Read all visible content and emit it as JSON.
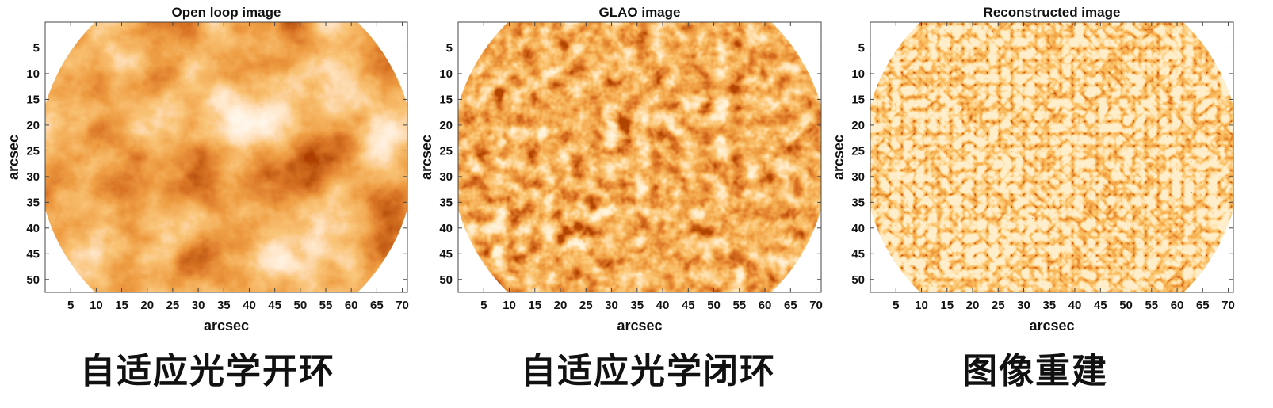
{
  "chart_data": [
    {
      "type": "heatmap",
      "title": "Open loop image",
      "xlabel": "arcsec",
      "ylabel": "arcsec",
      "xlim": [
        0,
        71
      ],
      "ylim": [
        52.5,
        0
      ],
      "xticks": [
        5,
        10,
        15,
        20,
        25,
        30,
        35,
        40,
        45,
        50,
        55,
        60,
        65,
        70
      ],
      "yticks": [
        5,
        10,
        15,
        20,
        25,
        30,
        35,
        40,
        45,
        50
      ],
      "colormap": [
        "#7a1500",
        "#c84a10",
        "#ef8a2e",
        "#ffe4c0"
      ],
      "texture": "blurred",
      "caption": "自适应光学开环"
    },
    {
      "type": "heatmap",
      "title": "GLAO image",
      "xlabel": "arcsec",
      "ylabel": "arcsec",
      "xlim": [
        0,
        71
      ],
      "ylim": [
        52.5,
        0
      ],
      "xticks": [
        5,
        10,
        15,
        20,
        25,
        30,
        35,
        40,
        45,
        50,
        55,
        60,
        65,
        70
      ],
      "yticks": [
        5,
        10,
        15,
        20,
        25,
        30,
        35,
        40,
        45,
        50
      ],
      "colormap": [
        "#7a1500",
        "#c84a10",
        "#ef8a2e",
        "#ffe4c0"
      ],
      "texture": "granules",
      "caption": "自适应光学闭环"
    },
    {
      "type": "heatmap",
      "title": "Reconstructed image",
      "xlabel": "arcsec",
      "ylabel": "arcsec",
      "xlim": [
        0,
        71
      ],
      "ylim": [
        52.5,
        0
      ],
      "xticks": [
        5,
        10,
        15,
        20,
        25,
        30,
        35,
        40,
        45,
        50,
        55,
        60,
        65,
        70
      ],
      "yticks": [
        5,
        10,
        15,
        20,
        25,
        30,
        35,
        40,
        45,
        50
      ],
      "colormap": [
        "#7a1500",
        "#c84a10",
        "#ef8a2e",
        "#ffe4c0"
      ],
      "texture": "sharp-granulation",
      "caption": "图像重建"
    }
  ]
}
